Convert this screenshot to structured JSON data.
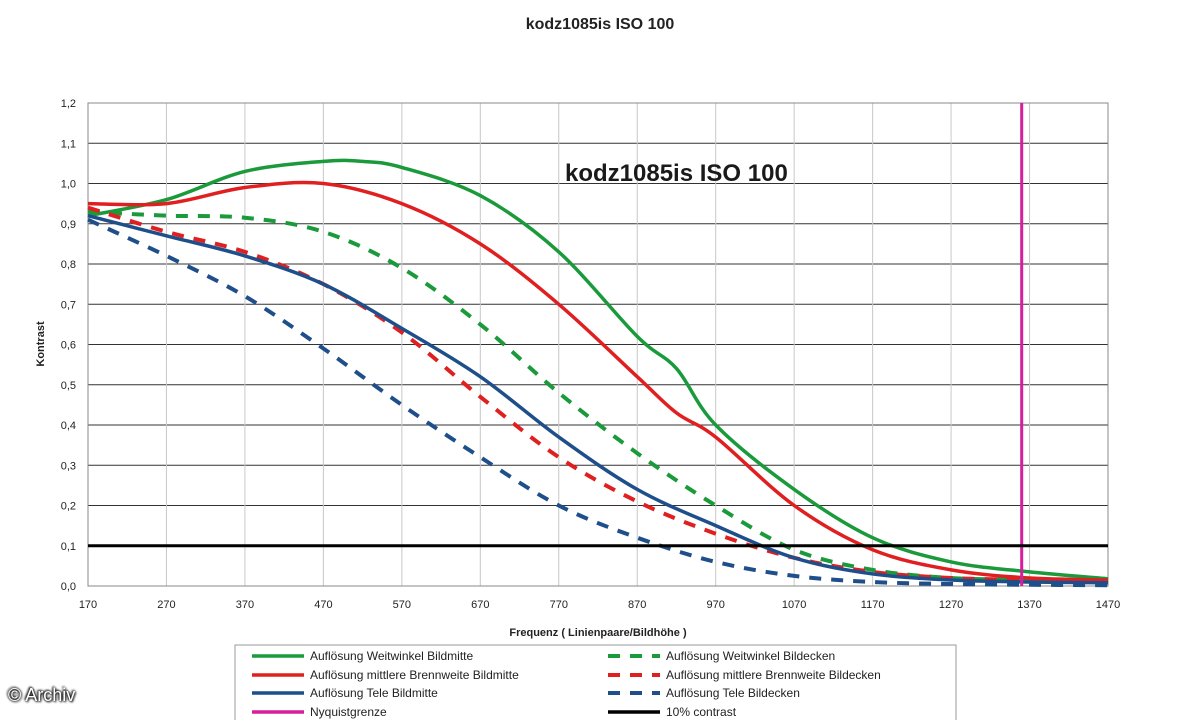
{
  "chart_data": {
    "type": "line",
    "title": "kodz1085is ISO 100",
    "inner_title": "kodz1085is ISO 100",
    "xlabel": "Frequenz ( Linienpaare/Bildhöhe )",
    "ylabel": "Kontrast",
    "xlim": [
      170,
      1470
    ],
    "ylim": [
      0,
      1.2
    ],
    "x_ticks": [
      "170",
      "270",
      "370",
      "470",
      "570",
      "670",
      "770",
      "870",
      "970",
      "1070",
      "1170",
      "1270",
      "1370",
      "1470"
    ],
    "y_ticks": [
      "0,0",
      "0,1",
      "0,2",
      "0,3",
      "0,4",
      "0,5",
      "0,6",
      "0,7",
      "0,8",
      "0,9",
      "1,0",
      "1,1",
      "1,2"
    ],
    "grid": "horizontal",
    "legend_position": "bottom",
    "series": [
      {
        "name": "Auflösung Weitwinkel Bildmitte",
        "color": "#1a9a3a",
        "dash": "solid",
        "x": [
          170,
          270,
          370,
          470,
          520,
          570,
          670,
          770,
          870,
          920,
          970,
          1070,
          1170,
          1270,
          1370,
          1470
        ],
        "y": [
          0.92,
          0.96,
          1.03,
          1.055,
          1.055,
          1.04,
          0.97,
          0.83,
          0.62,
          0.54,
          0.4,
          0.24,
          0.12,
          0.06,
          0.035,
          0.018
        ]
      },
      {
        "name": "Auflösung Weitwinkel Bildecken",
        "color": "#1a9a3a",
        "dash": "dashed",
        "x": [
          170,
          270,
          370,
          470,
          570,
          670,
          770,
          870,
          970,
          1070,
          1170,
          1270,
          1370,
          1470
        ],
        "y": [
          0.93,
          0.92,
          0.915,
          0.88,
          0.79,
          0.65,
          0.48,
          0.33,
          0.2,
          0.09,
          0.04,
          0.02,
          0.015,
          0.01
        ]
      },
      {
        "name": "Auflösung mittlere Brennweite Bildmitte",
        "color": "#e02020",
        "dash": "solid",
        "x": [
          170,
          270,
          370,
          470,
          570,
          670,
          770,
          870,
          920,
          970,
          1070,
          1170,
          1270,
          1370,
          1470
        ],
        "y": [
          0.95,
          0.95,
          0.99,
          1.0,
          0.95,
          0.85,
          0.7,
          0.52,
          0.43,
          0.37,
          0.2,
          0.09,
          0.04,
          0.02,
          0.015
        ]
      },
      {
        "name": "Auflösung mittlere Brennweite Bildecken",
        "color": "#e02020",
        "dash": "dashed",
        "x": [
          170,
          270,
          370,
          470,
          570,
          670,
          770,
          870,
          970,
          1070,
          1170,
          1270,
          1370,
          1470
        ],
        "y": [
          0.94,
          0.88,
          0.83,
          0.75,
          0.63,
          0.47,
          0.32,
          0.21,
          0.13,
          0.07,
          0.035,
          0.02,
          0.015,
          0.01
        ]
      },
      {
        "name": "Auflösung Tele Bildmitte",
        "color": "#1f4f8a",
        "dash": "solid",
        "x": [
          170,
          270,
          370,
          470,
          570,
          670,
          770,
          870,
          970,
          1070,
          1170,
          1270,
          1370,
          1470
        ],
        "y": [
          0.92,
          0.87,
          0.82,
          0.75,
          0.64,
          0.52,
          0.37,
          0.24,
          0.15,
          0.07,
          0.03,
          0.015,
          0.01,
          0.008
        ]
      },
      {
        "name": "Auflösung Tele Bildecken",
        "color": "#1f4f8a",
        "dash": "dashed",
        "x": [
          170,
          270,
          370,
          470,
          570,
          670,
          770,
          870,
          970,
          1070,
          1170,
          1270,
          1370,
          1470
        ],
        "y": [
          0.91,
          0.82,
          0.72,
          0.59,
          0.45,
          0.32,
          0.2,
          0.12,
          0.06,
          0.025,
          0.01,
          0.005,
          0.003,
          0.002
        ]
      }
    ],
    "reference_lines": [
      {
        "name": "Nyquistgrenze",
        "color": "#d61f9a",
        "orientation": "vertical",
        "x": 1360
      },
      {
        "name": "10% contrast",
        "color": "#000000",
        "orientation": "horizontal",
        "y": 0.1
      }
    ]
  },
  "watermark": "© Archiv"
}
